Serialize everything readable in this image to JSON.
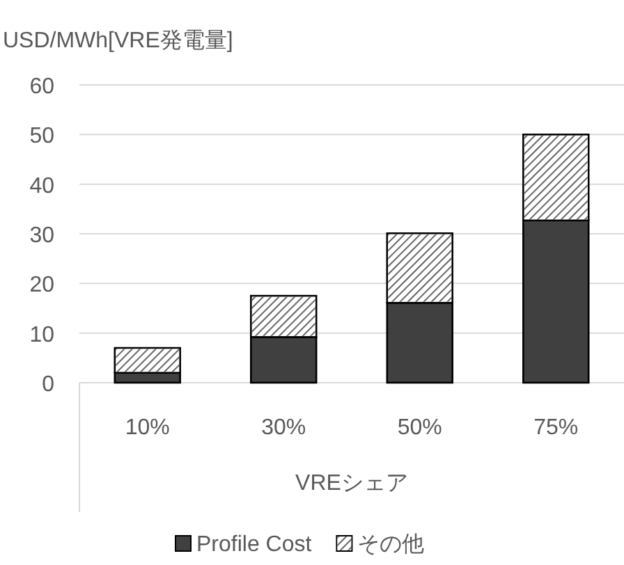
{
  "chart_data": {
    "type": "bar",
    "ylabel": "USD/MWh[VRE発電量]",
    "xlabel": "VREシェア",
    "categories": [
      "10%",
      "30%",
      "50%",
      "75%"
    ],
    "stacked": true,
    "series": [
      {
        "name": "Profile Cost",
        "color": "#404040",
        "values": [
          2,
          9.2,
          16.1,
          32.7
        ]
      },
      {
        "name": "その他",
        "color": "#ffffff",
        "values": [
          5,
          8.3,
          14,
          17.3
        ]
      }
    ],
    "ylim": [
      0,
      60
    ],
    "yticks": [
      0,
      10,
      20,
      30,
      40,
      50,
      60
    ],
    "grid": "y",
    "legend": "bottom"
  }
}
